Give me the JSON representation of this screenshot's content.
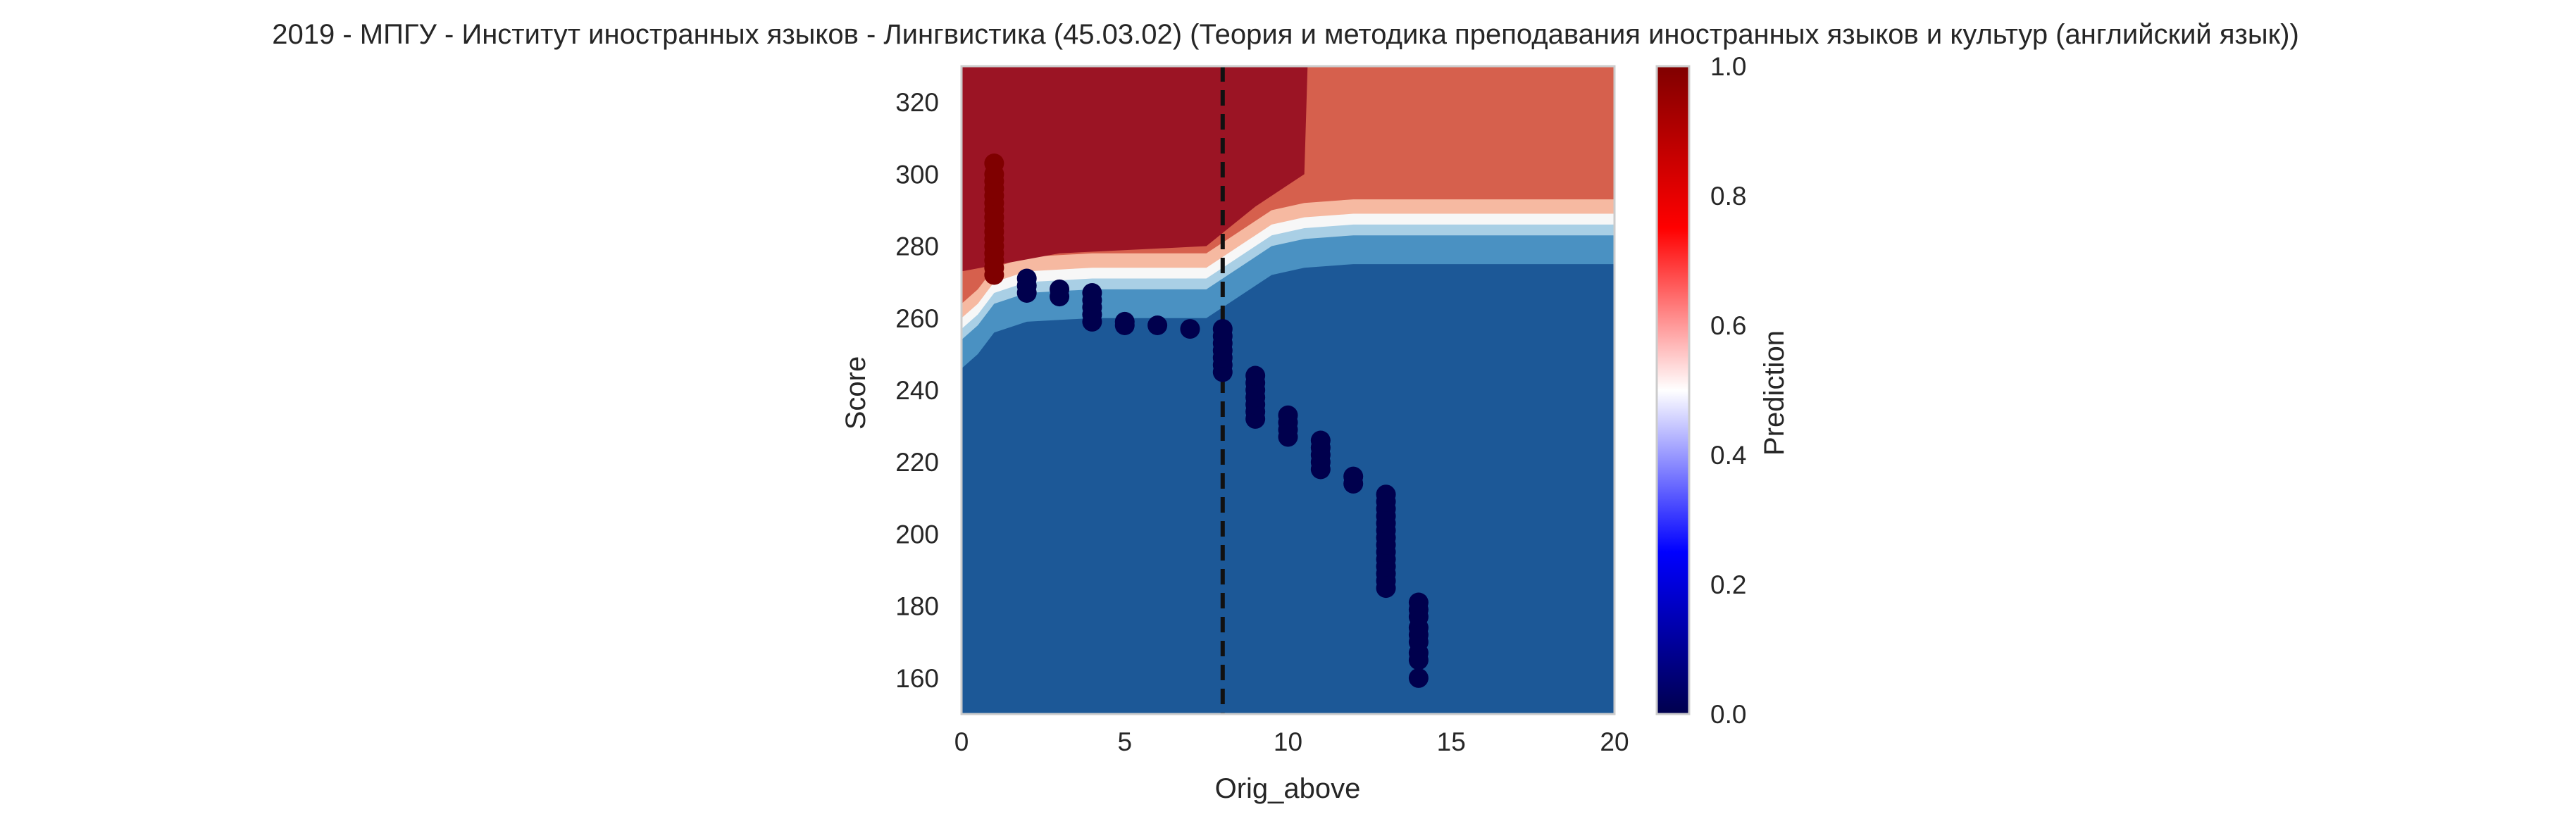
{
  "chart_data": {
    "type": "scatter",
    "title": "2019 - МПГУ - Институт иностранных языков - Лингвистика (45.03.02) (Теория и методика преподавания иностранных языков и культур (английский язык))",
    "xlabel": "Orig_above",
    "ylabel": "Score",
    "xlim": [
      0,
      20
    ],
    "ylim": [
      150,
      330
    ],
    "xticks": [
      0,
      5,
      10,
      15,
      20
    ],
    "yticks": [
      160,
      180,
      200,
      220,
      240,
      260,
      280,
      300,
      320
    ],
    "threshold_line": {
      "x": 8,
      "style": "dashed",
      "color": "#111111"
    },
    "background": {
      "type": "filled_contour",
      "description_levels": [
        0.0,
        0.1,
        0.2,
        0.3,
        0.4,
        0.5,
        0.6,
        0.7,
        0.8,
        0.9,
        1.0
      ],
      "colors": {
        "low": "#1c5897",
        "low_mid": "#4a91c2",
        "mid_low": "#a9cfe5",
        "mid": "#f7f7f7",
        "mid_high": "#f6b9a1",
        "high_mid": "#d6604d",
        "high": "#9b1424"
      },
      "boundary_centers": [
        {
          "x": 0.0,
          "y": 258
        },
        {
          "x": 0.5,
          "y": 262
        },
        {
          "x": 1.0,
          "y": 268
        },
        {
          "x": 2.0,
          "y": 271
        },
        {
          "x": 4.0,
          "y": 272
        },
        {
          "x": 6.0,
          "y": 272
        },
        {
          "x": 7.5,
          "y": 272
        },
        {
          "x": 8.5,
          "y": 278
        },
        {
          "x": 9.5,
          "y": 284
        },
        {
          "x": 10.5,
          "y": 286
        },
        {
          "x": 12.0,
          "y": 287
        },
        {
          "x": 16.0,
          "y": 287
        },
        {
          "x": 20.0,
          "y": 287
        }
      ],
      "top_band_boundary": [
        {
          "x": 0.0,
          "y": 273
        },
        {
          "x": 3.0,
          "y": 278
        },
        {
          "x": 7.5,
          "y": 280
        },
        {
          "x": 9.0,
          "y": 291
        },
        {
          "x": 10.5,
          "y": 300
        },
        {
          "x": 10.6,
          "y": 330
        }
      ]
    },
    "series": [
      {
        "prediction": 1.0,
        "color": "#7f0000",
        "points": [
          [
            1,
            272
          ],
          [
            1,
            274
          ],
          [
            1,
            276
          ],
          [
            1,
            278
          ],
          [
            1,
            280
          ],
          [
            1,
            282
          ],
          [
            1,
            284
          ],
          [
            1,
            286
          ],
          [
            1,
            288
          ],
          [
            1,
            290
          ],
          [
            1,
            292
          ],
          [
            1,
            294
          ],
          [
            1,
            296
          ],
          [
            1,
            298
          ],
          [
            1,
            300
          ],
          [
            1,
            303
          ]
        ]
      },
      {
        "prediction": 0.0,
        "color": "#00004d",
        "points": [
          [
            2,
            267
          ],
          [
            2,
            269
          ],
          [
            2,
            271
          ],
          [
            3,
            266
          ],
          [
            3,
            268
          ],
          [
            4,
            259
          ],
          [
            4,
            261
          ],
          [
            4,
            263
          ],
          [
            4,
            265
          ],
          [
            4,
            267
          ],
          [
            5,
            258
          ],
          [
            5,
            259
          ],
          [
            6,
            258
          ],
          [
            7,
            257
          ],
          [
            8,
            245
          ],
          [
            8,
            247
          ],
          [
            8,
            249
          ],
          [
            8,
            251
          ],
          [
            8,
            253
          ],
          [
            8,
            255
          ],
          [
            8,
            257
          ],
          [
            9,
            232
          ],
          [
            9,
            234
          ],
          [
            9,
            236
          ],
          [
            9,
            238
          ],
          [
            9,
            240
          ],
          [
            9,
            242
          ],
          [
            9,
            244
          ],
          [
            10,
            227
          ],
          [
            10,
            229
          ],
          [
            10,
            231
          ],
          [
            10,
            233
          ],
          [
            11,
            218
          ],
          [
            11,
            220
          ],
          [
            11,
            222
          ],
          [
            11,
            224
          ],
          [
            11,
            226
          ],
          [
            12,
            214
          ],
          [
            12,
            216
          ],
          [
            13,
            185
          ],
          [
            13,
            187
          ],
          [
            13,
            189
          ],
          [
            13,
            191
          ],
          [
            13,
            193
          ],
          [
            13,
            195
          ],
          [
            13,
            197
          ],
          [
            13,
            199
          ],
          [
            13,
            201
          ],
          [
            13,
            203
          ],
          [
            13,
            205
          ],
          [
            13,
            207
          ],
          [
            13,
            209
          ],
          [
            13,
            211
          ],
          [
            14,
            160
          ],
          [
            14,
            165
          ],
          [
            14,
            167
          ],
          [
            14,
            170
          ],
          [
            14,
            172
          ],
          [
            14,
            174
          ],
          [
            14,
            177
          ],
          [
            14,
            179
          ],
          [
            14,
            181
          ]
        ]
      }
    ],
    "colorbar": {
      "label": "Prediction",
      "range": [
        0.0,
        1.0
      ],
      "ticks": [
        "0.0",
        "0.2",
        "0.4",
        "0.6",
        "0.8",
        "1.0"
      ],
      "colormap": "seismic",
      "stops": [
        "#00004d",
        "#0000ff",
        "#ffffff",
        "#ff0000",
        "#800000"
      ]
    },
    "grid": false,
    "legend": "none"
  }
}
